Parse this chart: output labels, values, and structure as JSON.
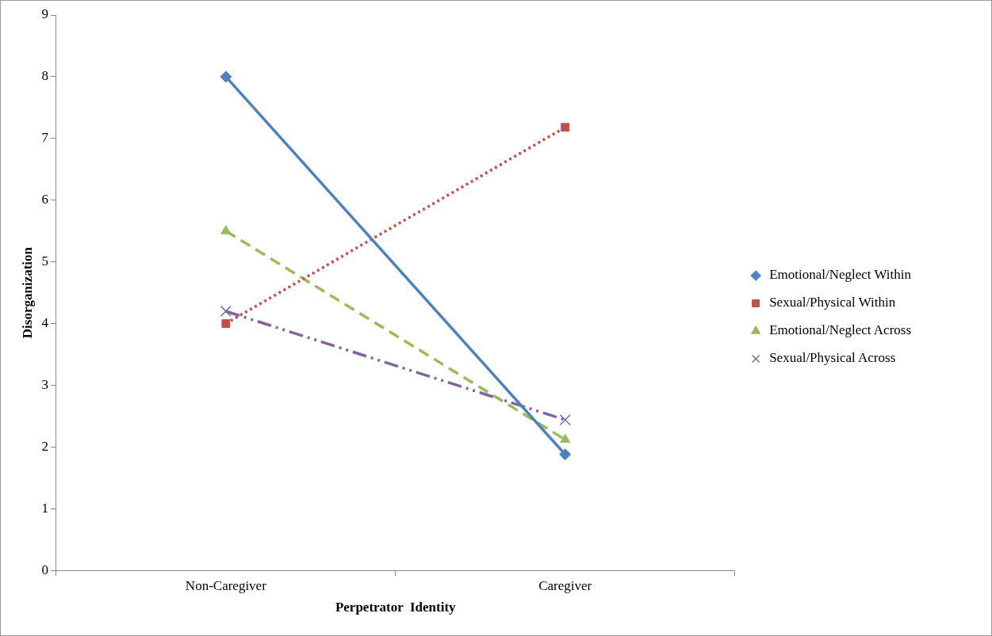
{
  "chart_data": {
    "type": "line",
    "xlabel": "Perpetrator  Identity",
    "ylabel": "Disorganization",
    "categories": [
      "Non-Caregiver",
      "Caregiver"
    ],
    "ylim": [
      0,
      9
    ],
    "yticks": [
      0,
      1,
      2,
      3,
      4,
      5,
      6,
      7,
      8,
      9
    ],
    "grid": false,
    "legend": "right",
    "series": [
      {
        "name": "Emotional/Neglect Within",
        "color": "#4f81bd",
        "values": [
          8,
          1.88
        ],
        "marker": "diamond",
        "line_style": "solid"
      },
      {
        "name": "Sexual/Physical Within",
        "color": "#c0504d",
        "values": [
          4,
          7.18
        ],
        "marker": "square",
        "line_style": "dotted"
      },
      {
        "name": "Emotional/Neglect Across",
        "color": "#9bbb59",
        "values": [
          5.5,
          2.12
        ],
        "marker": "triangle",
        "line_style": "dashed"
      },
      {
        "name": "Sexual/Physical Across",
        "color": "#8064a2",
        "values": [
          4.2,
          2.44
        ],
        "marker": "cross",
        "line_style": "dashdot"
      }
    ]
  }
}
